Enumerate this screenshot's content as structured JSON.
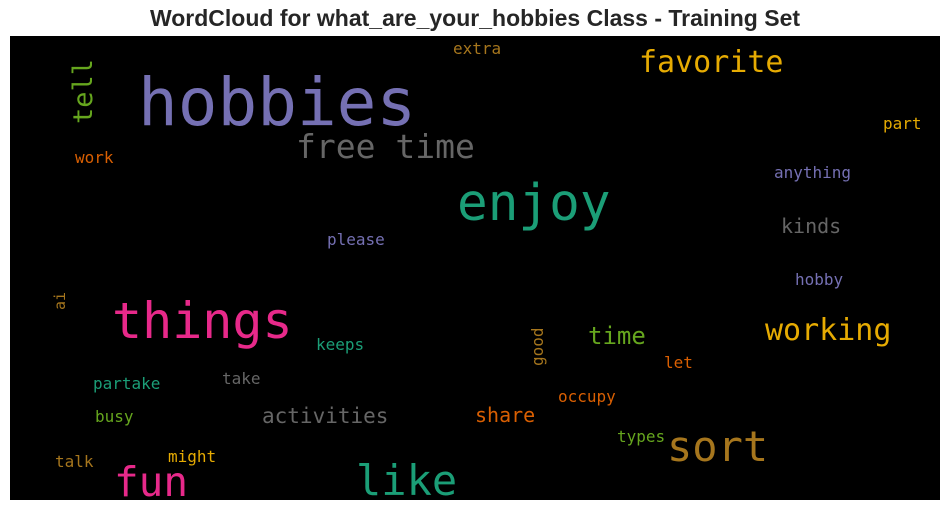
{
  "chart_data": {
    "type": "wordcloud",
    "title": "WordCloud for what_are_your_hobbies Class - Training Set",
    "background": "#000000",
    "words": [
      {
        "text": "hobbies",
        "color": "#7570b3"
      },
      {
        "text": "enjoy",
        "color": "#1b9e77"
      },
      {
        "text": "things",
        "color": "#e7298a"
      },
      {
        "text": "free time",
        "color": "#666666"
      },
      {
        "text": "like",
        "color": "#1b9e77"
      },
      {
        "text": "sort",
        "color": "#a6761d"
      },
      {
        "text": "fun",
        "color": "#e7298a"
      },
      {
        "text": "favorite",
        "color": "#e6ab02"
      },
      {
        "text": "working",
        "color": "#e6ab02"
      },
      {
        "text": "tell",
        "color": "#66a61e"
      },
      {
        "text": "time",
        "color": "#66a61e"
      },
      {
        "text": "activities",
        "color": "#666666"
      },
      {
        "text": "kinds",
        "color": "#666666"
      },
      {
        "text": "share",
        "color": "#d95f02"
      },
      {
        "text": "anything",
        "color": "#7570b3"
      },
      {
        "text": "hobby",
        "color": "#7570b3"
      },
      {
        "text": "please",
        "color": "#7570b3"
      },
      {
        "text": "keeps",
        "color": "#1b9e77"
      },
      {
        "text": "partake",
        "color": "#1b9e77"
      },
      {
        "text": "take",
        "color": "#666666"
      },
      {
        "text": "busy",
        "color": "#66a61e"
      },
      {
        "text": "might",
        "color": "#e6ab02"
      },
      {
        "text": "talk",
        "color": "#a6761d"
      },
      {
        "text": "occupy",
        "color": "#d95f02"
      },
      {
        "text": "types",
        "color": "#66a61e"
      },
      {
        "text": "let",
        "color": "#d95f02"
      },
      {
        "text": "good",
        "color": "#a6761d"
      },
      {
        "text": "extra",
        "color": "#a6761d"
      },
      {
        "text": "part",
        "color": "#e6ab02"
      },
      {
        "text": "work",
        "color": "#d95f02"
      },
      {
        "text": "ai",
        "color": "#a6761d"
      }
    ]
  }
}
